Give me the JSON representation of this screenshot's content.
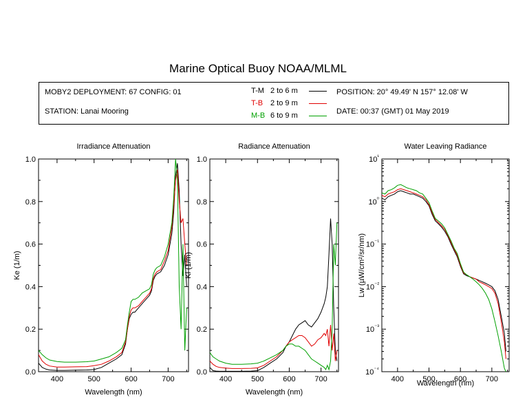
{
  "title": "Marine Optical Buoy NOAA/MLML",
  "info": {
    "deployment": "MOBY2 DEPLOYMENT: 67 CONFIG: 01",
    "station": "STATION: Lanai Mooring",
    "position": "POSITION: 20° 49.49' N   157° 12.08' W",
    "date": "DATE: 00:37 (GMT) 01 May 2019"
  },
  "legend": [
    {
      "code": "T-M",
      "range": "2 to 6  m",
      "color": "#000000"
    },
    {
      "code": "T-B",
      "range": "2 to 9  m",
      "color": "#e00000"
    },
    {
      "code": "M-B",
      "range": "6 to 9  m",
      "color": "#00a000"
    }
  ],
  "chart_data": [
    {
      "type": "line",
      "title": "Irradiance Attenuation",
      "xlabel": "Wavelength (nm)",
      "ylabel": "Ke  (1/m)",
      "xlim": [
        350,
        755
      ],
      "ylim": [
        0,
        1.0
      ],
      "xticks": [
        "400",
        "500",
        "600",
        "700"
      ],
      "yticks": [
        "0.0",
        "0.2",
        "0.4",
        "0.6",
        "0.8",
        "1.0"
      ],
      "x": [
        350,
        360,
        370,
        380,
        400,
        420,
        450,
        480,
        500,
        520,
        540,
        560,
        575,
        585,
        590,
        595,
        600,
        605,
        610,
        620,
        630,
        640,
        650,
        655,
        660,
        665,
        670,
        680,
        690,
        700,
        710,
        715,
        720,
        725,
        730,
        735,
        740,
        745,
        750
      ],
      "series": [
        {
          "name": "T-M",
          "color": "#000000",
          "values": [
            0.04,
            0.02,
            0.012,
            0.008,
            0.006,
            0.006,
            0.007,
            0.008,
            0.01,
            0.02,
            0.04,
            0.06,
            0.08,
            0.13,
            0.2,
            0.25,
            0.27,
            0.28,
            0.28,
            0.3,
            0.32,
            0.34,
            0.36,
            0.38,
            0.43,
            0.45,
            0.46,
            0.47,
            0.5,
            0.55,
            0.65,
            0.75,
            0.92,
            0.98,
            0.85,
            0.6,
            0.45,
            0.55,
            0.4
          ]
        },
        {
          "name": "T-B",
          "color": "#e00000",
          "values": [
            0.08,
            0.05,
            0.035,
            0.027,
            0.022,
            0.022,
            0.023,
            0.024,
            0.028,
            0.035,
            0.05,
            0.07,
            0.09,
            0.14,
            0.2,
            0.26,
            0.29,
            0.3,
            0.3,
            0.31,
            0.33,
            0.35,
            0.37,
            0.39,
            0.44,
            0.46,
            0.47,
            0.48,
            0.52,
            0.57,
            0.68,
            0.78,
            0.9,
            0.95,
            0.8,
            0.7,
            0.72,
            0.6,
            0.5
          ]
        },
        {
          "name": "M-B",
          "color": "#00a000",
          "values": [
            0.1,
            0.08,
            0.065,
            0.055,
            0.048,
            0.045,
            0.045,
            0.047,
            0.05,
            0.06,
            0.07,
            0.09,
            0.11,
            0.15,
            0.22,
            0.28,
            0.33,
            0.34,
            0.34,
            0.35,
            0.37,
            0.38,
            0.39,
            0.41,
            0.46,
            0.48,
            0.49,
            0.5,
            0.54,
            0.6,
            0.7,
            0.82,
            1.0,
            0.9,
            0.4,
            0.2,
            0.6,
            0.1,
            0.3
          ]
        }
      ]
    },
    {
      "type": "line",
      "title": "Radiance Attenuation",
      "xlabel": "Wavelength (nm)",
      "ylabel": "Kl  (1/m)",
      "xlim": [
        350,
        755
      ],
      "ylim": [
        0,
        1.0
      ],
      "xticks": [
        "400",
        "500",
        "600",
        "700"
      ],
      "yticks": [
        "0.0",
        "0.2",
        "0.4",
        "0.6",
        "0.8",
        "1.0"
      ],
      "x": [
        350,
        360,
        370,
        380,
        400,
        420,
        450,
        480,
        500,
        520,
        540,
        560,
        580,
        590,
        600,
        610,
        620,
        630,
        640,
        650,
        660,
        670,
        680,
        690,
        700,
        710,
        715,
        720,
        725,
        730,
        735,
        740,
        745,
        750
      ],
      "series": [
        {
          "name": "T-M",
          "color": "#000000",
          "values": [
            0.02,
            0.005,
            0.003,
            0.002,
            0.002,
            0.002,
            0.002,
            0.003,
            0.005,
            0.02,
            0.04,
            0.06,
            0.09,
            0.12,
            0.14,
            0.17,
            0.2,
            0.22,
            0.23,
            0.24,
            0.22,
            0.21,
            0.23,
            0.25,
            0.28,
            0.32,
            0.35,
            0.4,
            0.55,
            0.72,
            0.6,
            0.3,
            0.1,
            0.05
          ]
        },
        {
          "name": "T-B",
          "color": "#e00000",
          "values": [
            0.05,
            0.035,
            0.025,
            0.02,
            0.017,
            0.015,
            0.015,
            0.016,
            0.018,
            0.03,
            0.05,
            0.07,
            0.1,
            0.12,
            0.14,
            0.15,
            0.16,
            0.17,
            0.17,
            0.16,
            0.14,
            0.12,
            0.13,
            0.15,
            0.16,
            0.18,
            0.17,
            0.2,
            0.12,
            0.22,
            0.1,
            0.18,
            0.05,
            0.1
          ]
        },
        {
          "name": "M-B",
          "color": "#00a000",
          "values": [
            0.09,
            0.07,
            0.06,
            0.05,
            0.04,
            0.035,
            0.035,
            0.037,
            0.04,
            0.05,
            0.065,
            0.08,
            0.1,
            0.12,
            0.13,
            0.13,
            0.12,
            0.12,
            0.11,
            0.1,
            0.08,
            0.06,
            0.05,
            0.04,
            0.03,
            0.02,
            0.01,
            0.03,
            0.01,
            0.05,
            0.2,
            0.6,
            0.5,
            0.7
          ]
        }
      ]
    },
    {
      "type": "line",
      "title": "Water Leaving Radiance",
      "xlabel": "Wavelength (nm)",
      "ylabel": "Lw  (µW/cm²/sr/nm)",
      "yscale": "log",
      "xlim": [
        350,
        755
      ],
      "ylim": [
        0.0001,
        10
      ],
      "xticks": [
        "400",
        "500",
        "600",
        "700"
      ],
      "yticks": [
        "10⁻⁴",
        "10⁻³",
        "10⁻²",
        "10⁻¹",
        "10⁰",
        "10¹"
      ],
      "x": [
        350,
        360,
        370,
        380,
        390,
        400,
        410,
        420,
        430,
        440,
        450,
        460,
        470,
        480,
        490,
        500,
        510,
        520,
        530,
        540,
        550,
        560,
        570,
        580,
        590,
        600,
        610,
        620,
        630,
        640,
        650,
        660,
        670,
        680,
        690,
        700,
        710,
        720,
        730,
        740,
        745
      ],
      "series": [
        {
          "name": "T-M",
          "color": "#000000",
          "values": [
            1.2,
            1.1,
            1.3,
            1.4,
            1.5,
            1.7,
            1.8,
            1.7,
            1.6,
            1.5,
            1.5,
            1.4,
            1.3,
            1.2,
            1.0,
            0.8,
            0.5,
            0.35,
            0.3,
            0.25,
            0.2,
            0.15,
            0.1,
            0.07,
            0.05,
            0.03,
            0.02,
            0.018,
            0.017,
            0.016,
            0.015,
            0.014,
            0.013,
            0.012,
            0.011,
            0.01,
            0.008,
            0.005,
            0.002,
            0.0008,
            0.0003
          ]
        },
        {
          "name": "T-B",
          "color": "#e00000",
          "values": [
            1.4,
            1.3,
            1.5,
            1.6,
            1.7,
            1.9,
            2.0,
            1.9,
            1.8,
            1.7,
            1.6,
            1.5,
            1.4,
            1.3,
            1.1,
            0.85,
            0.55,
            0.38,
            0.32,
            0.27,
            0.22,
            0.16,
            0.11,
            0.075,
            0.055,
            0.032,
            0.021,
            0.019,
            0.017,
            0.016,
            0.015,
            0.013,
            0.012,
            0.011,
            0.01,
            0.009,
            0.007,
            0.004,
            0.0015,
            0.0005,
            0.0002
          ]
        },
        {
          "name": "M-B",
          "color": "#00a000",
          "values": [
            1.6,
            1.5,
            1.8,
            1.9,
            2.1,
            2.4,
            2.5,
            2.3,
            2.1,
            2.0,
            1.9,
            1.8,
            1.6,
            1.5,
            1.2,
            0.95,
            0.6,
            0.4,
            0.35,
            0.3,
            0.24,
            0.17,
            0.12,
            0.08,
            0.06,
            0.035,
            0.022,
            0.019,
            0.017,
            0.015,
            0.013,
            0.011,
            0.009,
            0.007,
            0.005,
            0.003,
            0.0015,
            0.0007,
            0.0003,
            0.00012,
            0.0001
          ]
        }
      ]
    }
  ]
}
